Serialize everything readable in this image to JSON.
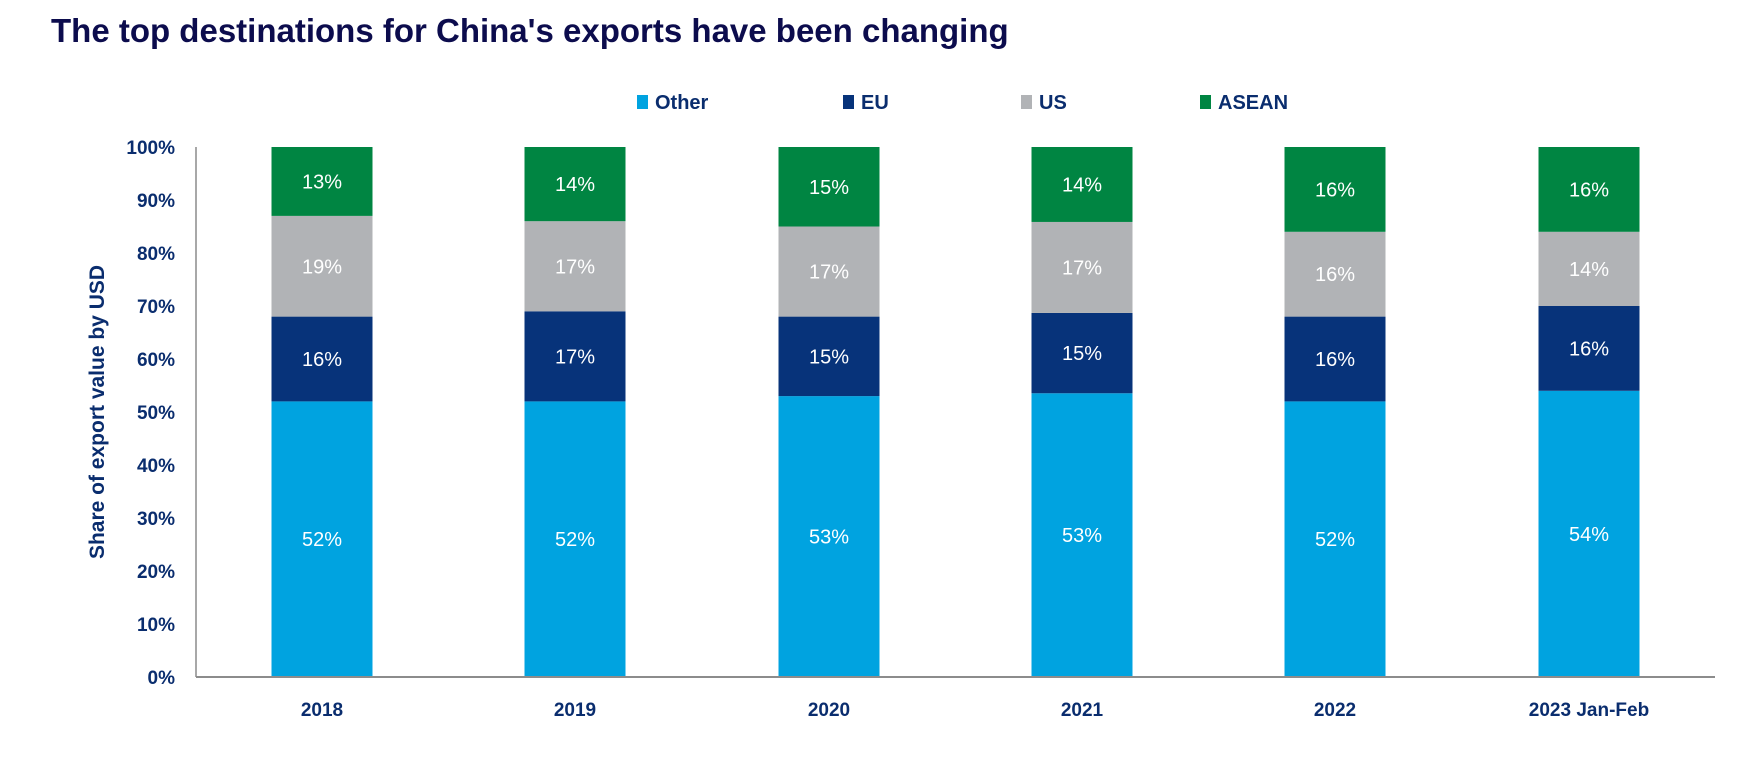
{
  "title": "The top destinations for China's exports have been changing",
  "chart_data": {
    "type": "bar",
    "stacked": true,
    "title": "The top destinations for China's exports have been changing",
    "xlabel": "",
    "ylabel": "Share of export value by USD",
    "ylim": [
      0,
      100
    ],
    "yticks": [
      "0%",
      "10%",
      "20%",
      "30%",
      "40%",
      "50%",
      "60%",
      "70%",
      "80%",
      "90%",
      "100%"
    ],
    "grid": false,
    "legend_position": "top",
    "categories": [
      "2018",
      "2019",
      "2020",
      "2021",
      "2022",
      "2023 Jan-Feb"
    ],
    "series": [
      {
        "name": "Other",
        "color": "#00a3e0",
        "values": [
          52,
          52,
          53,
          53,
          52,
          54
        ]
      },
      {
        "name": "EU",
        "color": "#07337a",
        "values": [
          16,
          17,
          15,
          15,
          16,
          16
        ]
      },
      {
        "name": "US",
        "color": "#b1b3b6",
        "values": [
          19,
          17,
          17,
          17,
          16,
          14
        ]
      },
      {
        "name": "ASEAN",
        "color": "#008542",
        "values": [
          13,
          14,
          15,
          14,
          16,
          16
        ]
      }
    ],
    "data_label_suffix": "%"
  }
}
